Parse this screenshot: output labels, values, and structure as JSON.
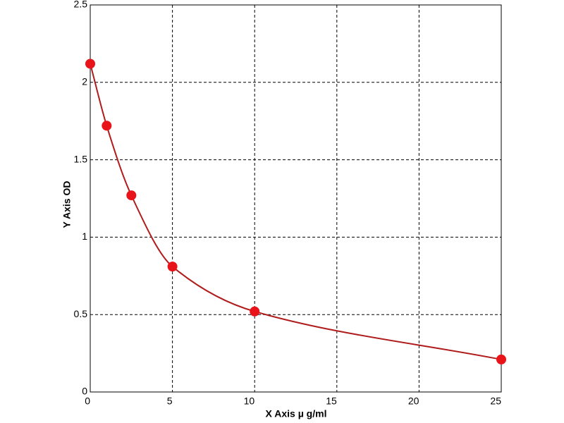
{
  "chart_data": {
    "type": "scatter",
    "x_label": "X Axis  µ g/ml",
    "y_label": "Y Axis OD",
    "x": [
      0,
      1,
      2.5,
      5,
      10,
      25
    ],
    "values": [
      2.12,
      1.72,
      1.27,
      0.81,
      0.52,
      0.21
    ],
    "color": "#e8141a",
    "curve_color": "#b01c1c",
    "smooth_curve": true,
    "xlim": [
      0,
      25
    ],
    "xticks": [
      0,
      5,
      10,
      15,
      20,
      25
    ],
    "ylim": [
      0,
      2.5
    ],
    "yticks": [
      0,
      0.5,
      1,
      1.5,
      2,
      2.5
    ],
    "grid": true
  }
}
